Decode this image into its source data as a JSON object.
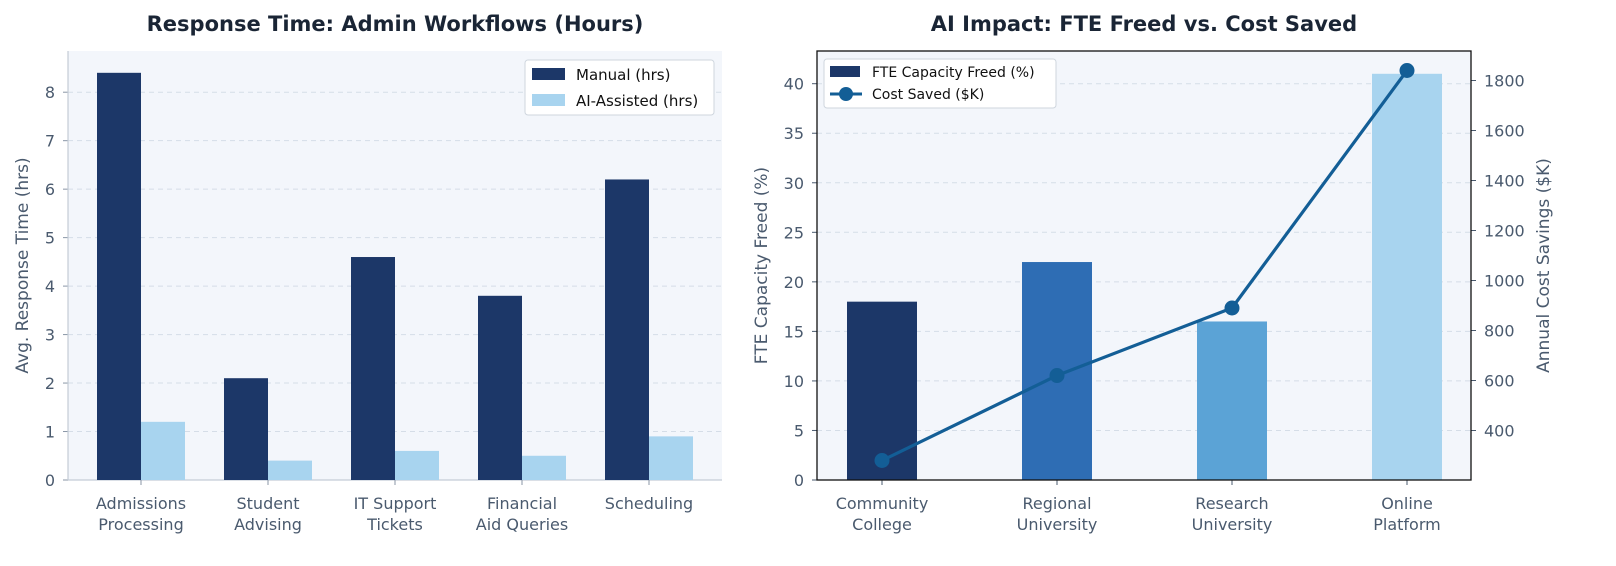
{
  "chart_data": [
    {
      "type": "bar",
      "title": "Response Time: Admin Workflows (Hours)",
      "xlabel": "",
      "ylabel": "Avg. Response Time (hrs)",
      "categories": [
        [
          "Admissions",
          "Processing"
        ],
        [
          "Student",
          "Advising"
        ],
        [
          "IT Support",
          "Tickets"
        ],
        [
          "Financial",
          "Aid Queries"
        ],
        [
          "Scheduling"
        ]
      ],
      "series": [
        {
          "name": "Manual (hrs)",
          "values": [
            8.4,
            2.1,
            4.6,
            3.8,
            6.2
          ],
          "color": "#1c3768"
        },
        {
          "name": "AI-Assisted (hrs)",
          "values": [
            1.2,
            0.4,
            0.6,
            0.5,
            0.9
          ],
          "color": "#a8d4ef"
        }
      ],
      "ylim": [
        0,
        8.85
      ],
      "yticks": [
        0,
        1,
        2,
        3,
        4,
        5,
        6,
        7,
        8
      ],
      "grid": true,
      "legend": "top-right"
    },
    {
      "type": "bar+line",
      "title": "AI Impact: FTE Freed vs. Cost Saved",
      "xlabel": "",
      "ylabel": "FTE Capacity Freed (%)",
      "y2label": "Annual Cost Savings ($K)",
      "categories": [
        [
          "Community",
          "College"
        ],
        [
          "Regional",
          "University"
        ],
        [
          "Research",
          "University"
        ],
        [
          "Online",
          "Platform"
        ]
      ],
      "bar_series": {
        "name": "FTE Capacity Freed (%)",
        "values": [
          18,
          22,
          16,
          41
        ],
        "colors": [
          "#1c3768",
          "#2e6db4",
          "#5ba3d6",
          "#a8d4ef"
        ]
      },
      "line_series": {
        "name": "Cost Saved ($K)",
        "values": [
          280,
          620,
          890,
          1840
        ],
        "color": "#135e96"
      },
      "ylim": [
        0,
        43.3
      ],
      "yticks": [
        0,
        5,
        10,
        15,
        20,
        25,
        30,
        35,
        40
      ],
      "y2lim": [
        202,
        1918
      ],
      "y2ticks": [
        400,
        600,
        800,
        1000,
        1200,
        1400,
        1600,
        1800
      ],
      "grid": true,
      "legend": "top-left"
    }
  ]
}
